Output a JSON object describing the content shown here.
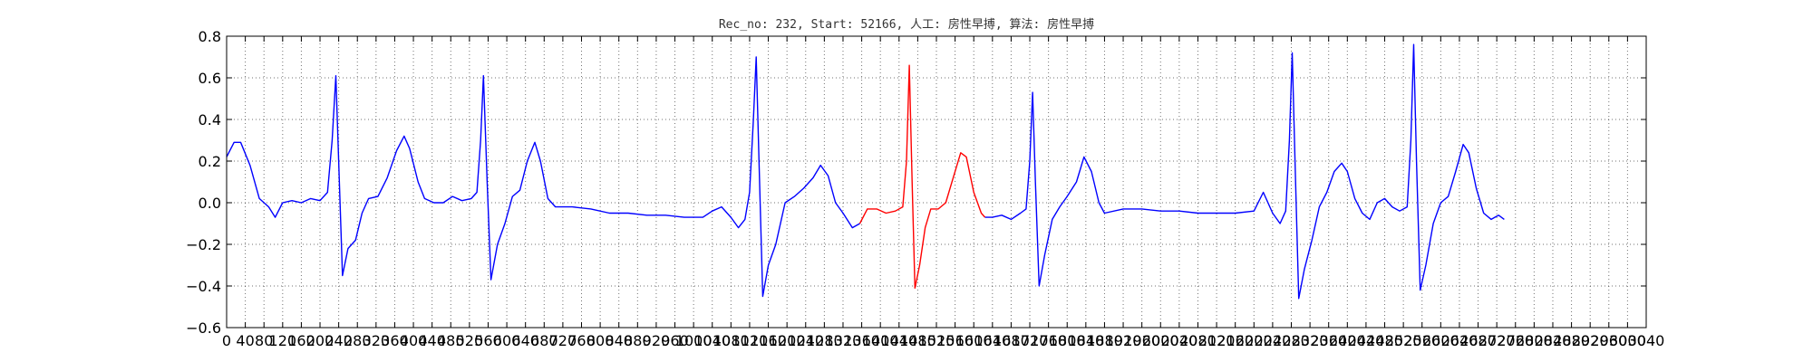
{
  "chart_data": {
    "type": "line",
    "title": "Rec_no: 232, Start: 52166, 人工: 房性早搏, 算法: 房性早搏",
    "xlabel": "",
    "ylabel": "",
    "xlim": [
      0,
      1520
    ],
    "ylim": [
      -0.6,
      0.8
    ],
    "yticks": [
      -0.6,
      -0.4,
      -0.2,
      0.0,
      0.2,
      0.4,
      0.6,
      0.8
    ],
    "ytick_labels": [
      "−0.6",
      "−0.4",
      "−0.2",
      "0.0",
      "0.2",
      "0.4",
      "0.6",
      "0.8"
    ],
    "xticks": [
      0,
      20,
      40,
      60,
      80,
      100,
      120,
      140,
      160,
      180,
      200,
      220,
      240,
      260,
      280,
      300,
      320,
      340,
      360,
      380,
      400,
      420,
      440,
      460,
      480,
      500,
      520,
      540,
      560,
      580,
      600,
      620,
      640,
      660,
      680,
      700,
      720,
      740,
      760,
      780,
      800,
      820,
      840,
      860,
      880,
      900,
      920,
      940,
      960,
      980,
      1000,
      1020,
      1040,
      1060,
      1080,
      1100,
      1120,
      1140,
      1160,
      1180,
      1200,
      1220,
      1240,
      1260,
      1280,
      1300,
      1320,
      1340,
      1360,
      1380,
      1400,
      1420,
      1440,
      1460,
      1480,
      1500,
      1520
    ],
    "xtick_labels": [
      "0",
      "40",
      "80",
      "120",
      "160",
      "200",
      "240",
      "280",
      "320",
      "360",
      "400",
      "440",
      "480",
      "520",
      "560",
      "600",
      "640",
      "680",
      "720",
      "760",
      "800",
      "840",
      "880",
      "920",
      "960",
      "1000",
      "1040",
      "1080",
      "1120",
      "1160",
      "1200",
      "1240",
      "1280",
      "1320",
      "1360",
      "1400",
      "1440",
      "1480",
      "1520",
      "1560",
      "1600",
      "1640",
      "1680",
      "1720",
      "1760",
      "1800",
      "1840",
      "1880",
      "1920",
      "1960",
      "2000",
      "2040",
      "2080",
      "2120",
      "2160",
      "2200",
      "2240",
      "2280",
      "2320",
      "2360",
      "2400",
      "2440",
      "2480",
      "2520",
      "2560",
      "2600",
      "2640",
      "2680",
      "2720",
      "2760",
      "2800",
      "2840",
      "2880",
      "2920",
      "2960",
      "3000",
      "3040"
    ],
    "grid": true,
    "series": [
      {
        "name": "",
        "color": "#0000ff",
        "points": [
          [
            0,
            0.22
          ],
          [
            8,
            0.29
          ],
          [
            15,
            0.29
          ],
          [
            25,
            0.18
          ],
          [
            35,
            0.02
          ],
          [
            45,
            -0.02
          ],
          [
            52,
            -0.07
          ],
          [
            60,
            0.0
          ],
          [
            70,
            0.01
          ],
          [
            80,
            0.0
          ],
          [
            90,
            0.02
          ],
          [
            100,
            0.01
          ],
          [
            108,
            0.05
          ],
          [
            113,
            0.3
          ],
          [
            117,
            0.61
          ],
          [
            120,
            0.2
          ],
          [
            124,
            -0.35
          ],
          [
            130,
            -0.22
          ],
          [
            138,
            -0.18
          ],
          [
            145,
            -0.05
          ],
          [
            152,
            0.02
          ],
          [
            162,
            0.03
          ],
          [
            172,
            0.12
          ],
          [
            182,
            0.25
          ],
          [
            190,
            0.32
          ],
          [
            196,
            0.26
          ],
          [
            205,
            0.1
          ],
          [
            212,
            0.02
          ],
          [
            222,
            0.0
          ],
          [
            232,
            0.0
          ],
          [
            242,
            0.03
          ],
          [
            252,
            0.01
          ],
          [
            262,
            0.02
          ],
          [
            268,
            0.05
          ],
          [
            272,
            0.3
          ],
          [
            275,
            0.61
          ],
          [
            279,
            0.1
          ],
          [
            283,
            -0.37
          ],
          [
            290,
            -0.2
          ],
          [
            298,
            -0.1
          ],
          [
            306,
            0.03
          ],
          [
            314,
            0.06
          ],
          [
            322,
            0.2
          ],
          [
            330,
            0.29
          ],
          [
            336,
            0.2
          ],
          [
            344,
            0.02
          ],
          [
            352,
            -0.02
          ],
          [
            370,
            -0.02
          ],
          [
            390,
            -0.03
          ],
          [
            410,
            -0.05
          ],
          [
            430,
            -0.05
          ],
          [
            450,
            -0.06
          ],
          [
            470,
            -0.06
          ],
          [
            490,
            -0.07
          ],
          [
            510,
            -0.07
          ],
          [
            520,
            -0.04
          ],
          [
            530,
            -0.02
          ],
          [
            540,
            -0.07
          ],
          [
            548,
            -0.12
          ],
          [
            555,
            -0.08
          ],
          [
            560,
            0.05
          ],
          [
            564,
            0.4
          ],
          [
            567,
            0.7
          ],
          [
            570,
            0.2
          ],
          [
            574,
            -0.45
          ],
          [
            580,
            -0.3
          ],
          [
            588,
            -0.2
          ],
          [
            598,
            0.0
          ],
          [
            608,
            0.03
          ],
          [
            618,
            0.07
          ],
          [
            628,
            0.12
          ],
          [
            636,
            0.18
          ],
          [
            644,
            0.13
          ],
          [
            652,
            0.0
          ],
          [
            660,
            -0.05
          ],
          [
            670,
            -0.12
          ],
          [
            678,
            -0.1
          ]
        ]
      },
      {
        "name": "",
        "color": "#ff0000",
        "points": [
          [
            678,
            -0.1
          ],
          [
            686,
            -0.03
          ],
          [
            696,
            -0.03
          ],
          [
            706,
            -0.05
          ],
          [
            716,
            -0.04
          ],
          [
            724,
            -0.02
          ],
          [
            728,
            0.2
          ],
          [
            731,
            0.66
          ],
          [
            734,
            0.1
          ],
          [
            737,
            -0.41
          ],
          [
            742,
            -0.3
          ],
          [
            748,
            -0.12
          ],
          [
            754,
            -0.03
          ],
          [
            762,
            -0.03
          ],
          [
            770,
            0.0
          ],
          [
            778,
            0.12
          ],
          [
            786,
            0.24
          ],
          [
            792,
            0.22
          ],
          [
            800,
            0.05
          ],
          [
            808,
            -0.05
          ],
          [
            812,
            -0.07
          ]
        ]
      },
      {
        "name": "",
        "color": "#0000ff",
        "points": [
          [
            812,
            -0.07
          ],
          [
            820,
            -0.07
          ],
          [
            830,
            -0.06
          ],
          [
            840,
            -0.08
          ],
          [
            850,
            -0.05
          ],
          [
            856,
            -0.03
          ],
          [
            860,
            0.2
          ],
          [
            863,
            0.53
          ],
          [
            866,
            0.1
          ],
          [
            870,
            -0.4
          ],
          [
            876,
            -0.25
          ],
          [
            884,
            -0.08
          ],
          [
            892,
            -0.02
          ],
          [
            900,
            0.03
          ],
          [
            910,
            0.1
          ],
          [
            918,
            0.22
          ],
          [
            926,
            0.15
          ],
          [
            934,
            0.0
          ],
          [
            940,
            -0.05
          ],
          [
            960,
            -0.03
          ],
          [
            980,
            -0.03
          ],
          [
            1000,
            -0.04
          ],
          [
            1020,
            -0.04
          ],
          [
            1040,
            -0.05
          ],
          [
            1060,
            -0.05
          ],
          [
            1080,
            -0.05
          ],
          [
            1100,
            -0.04
          ],
          [
            1110,
            0.05
          ],
          [
            1120,
            -0.05
          ],
          [
            1128,
            -0.1
          ],
          [
            1134,
            -0.04
          ],
          [
            1138,
            0.3
          ],
          [
            1141,
            0.72
          ],
          [
            1144,
            0.2
          ],
          [
            1148,
            -0.46
          ],
          [
            1154,
            -0.32
          ],
          [
            1162,
            -0.18
          ],
          [
            1170,
            -0.02
          ],
          [
            1178,
            0.05
          ],
          [
            1186,
            0.15
          ],
          [
            1194,
            0.19
          ],
          [
            1200,
            0.15
          ],
          [
            1208,
            0.02
          ],
          [
            1216,
            -0.05
          ],
          [
            1224,
            -0.08
          ],
          [
            1232,
            0.0
          ],
          [
            1240,
            0.02
          ],
          [
            1248,
            -0.02
          ],
          [
            1256,
            -0.04
          ],
          [
            1264,
            -0.02
          ],
          [
            1268,
            0.3
          ],
          [
            1271,
            0.76
          ],
          [
            1274,
            0.2
          ],
          [
            1278,
            -0.42
          ],
          [
            1284,
            -0.3
          ],
          [
            1292,
            -0.1
          ],
          [
            1300,
            0.0
          ],
          [
            1308,
            0.03
          ],
          [
            1316,
            0.15
          ],
          [
            1324,
            0.28
          ],
          [
            1330,
            0.24
          ],
          [
            1338,
            0.07
          ],
          [
            1346,
            -0.05
          ],
          [
            1354,
            -0.08
          ],
          [
            1362,
            -0.06
          ],
          [
            1368,
            -0.08
          ]
        ]
      }
    ]
  }
}
